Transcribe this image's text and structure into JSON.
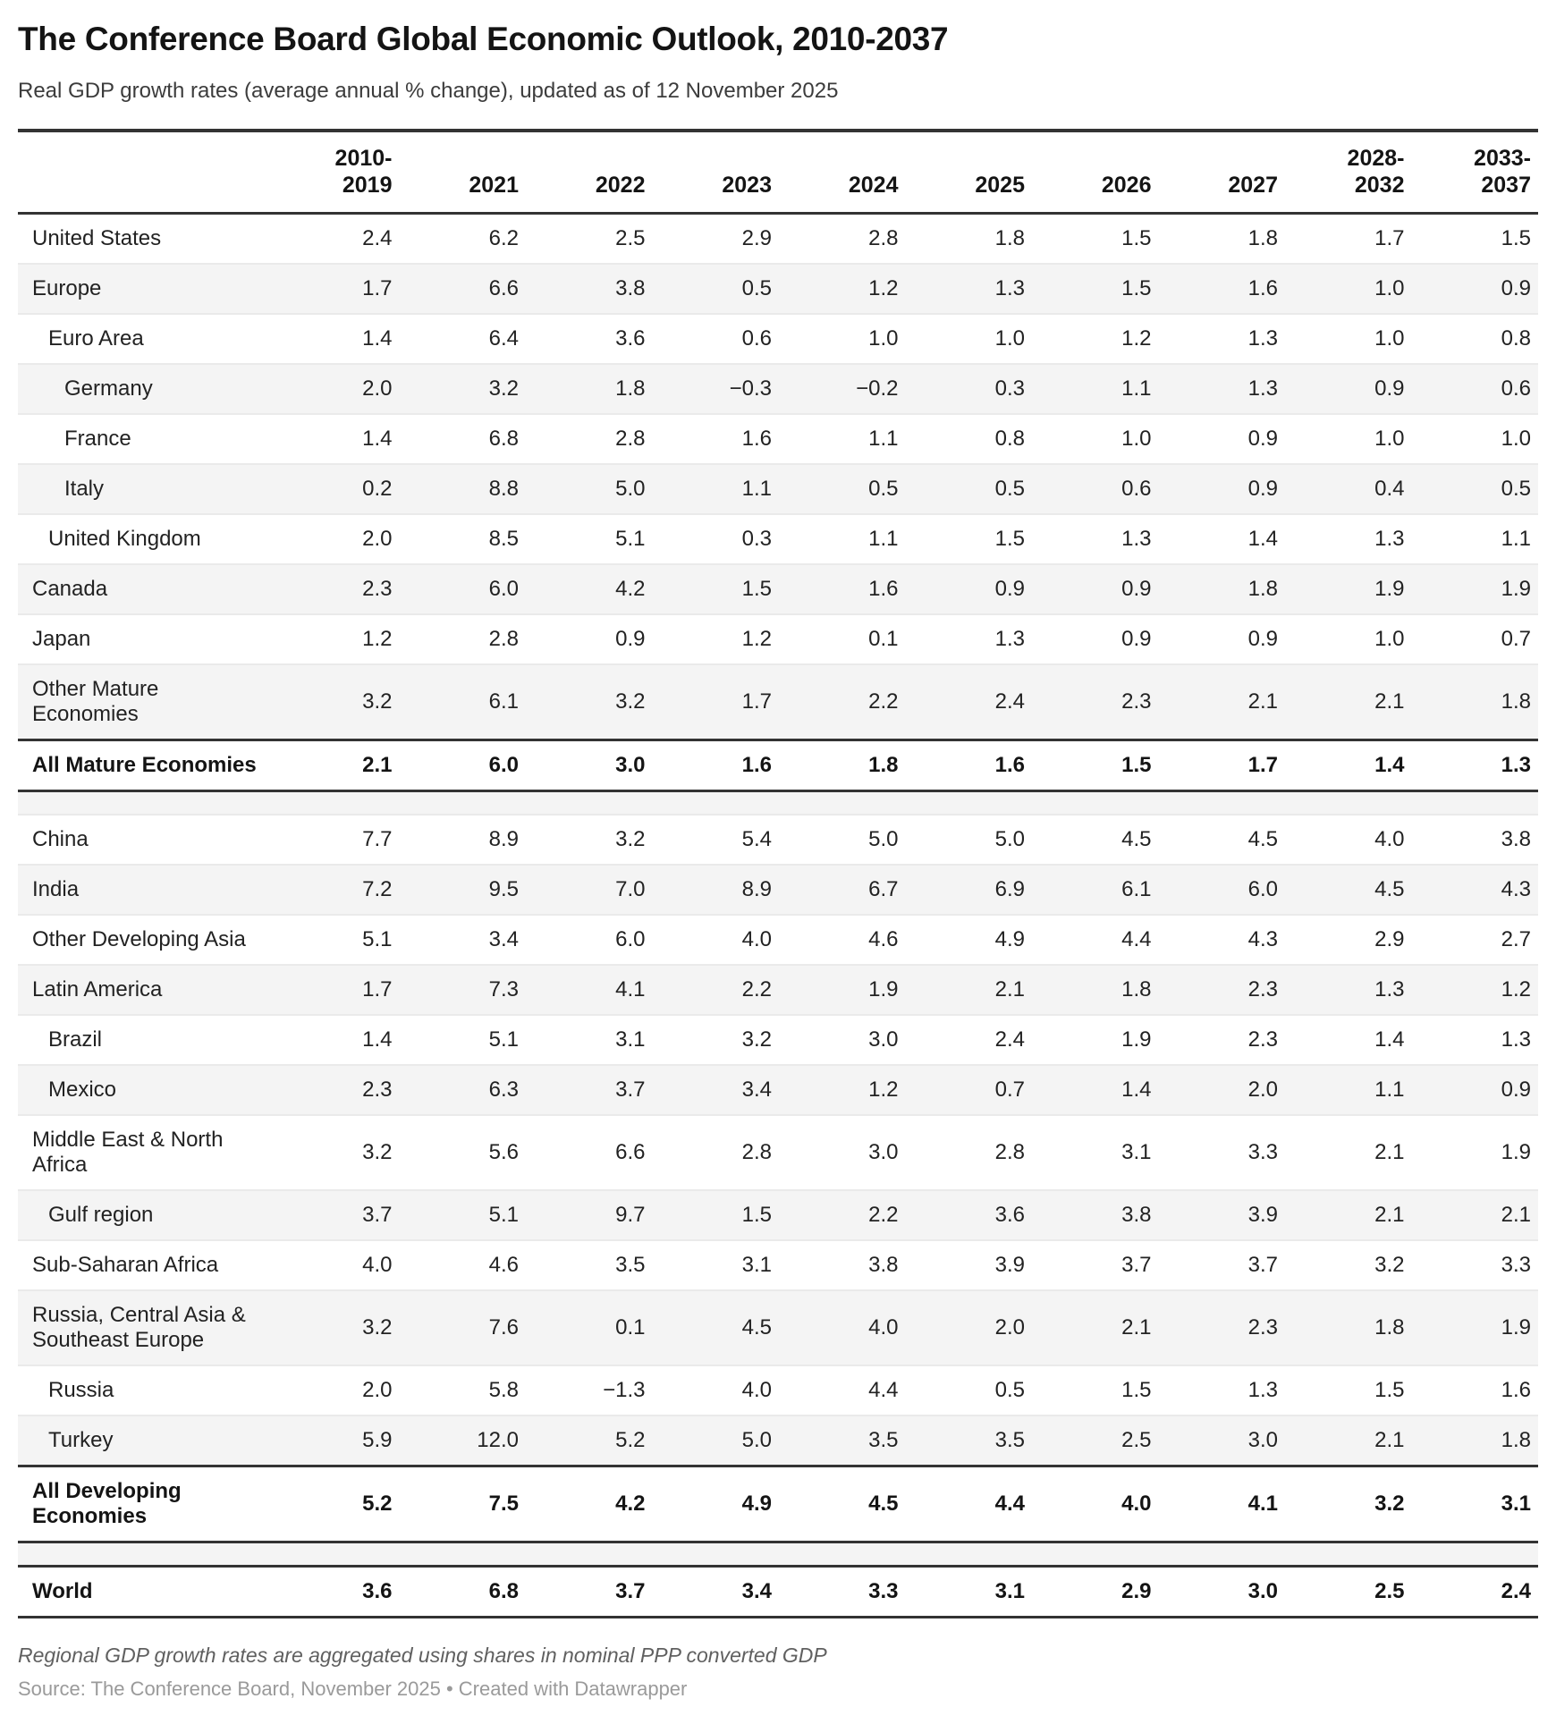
{
  "chart_data": {
    "type": "table",
    "title": "The Conference Board Global Economic Outlook, 2010-2037",
    "subtitle": "Real GDP growth rates (average annual % change), updated as of 12 November 2025",
    "columns": [
      "2010-\n2019",
      "2021",
      "2022",
      "2023",
      "2024",
      "2025",
      "2026",
      "2027",
      "2028-\n2032",
      "2033-\n2037"
    ],
    "rows": [
      {
        "label": "United States",
        "indent": 0,
        "type": "data",
        "values": [
          "2.4",
          "6.2",
          "2.5",
          "2.9",
          "2.8",
          "1.8",
          "1.5",
          "1.8",
          "1.7",
          "1.5"
        ]
      },
      {
        "label": "Europe",
        "indent": 0,
        "type": "data",
        "values": [
          "1.7",
          "6.6",
          "3.8",
          "0.5",
          "1.2",
          "1.3",
          "1.5",
          "1.6",
          "1.0",
          "0.9"
        ]
      },
      {
        "label": "Euro Area",
        "indent": 1,
        "type": "data",
        "values": [
          "1.4",
          "6.4",
          "3.6",
          "0.6",
          "1.0",
          "1.0",
          "1.2",
          "1.3",
          "1.0",
          "0.8"
        ]
      },
      {
        "label": "Germany",
        "indent": 2,
        "type": "data",
        "values": [
          "2.0",
          "3.2",
          "1.8",
          "−0.3",
          "−0.2",
          "0.3",
          "1.1",
          "1.3",
          "0.9",
          "0.6"
        ]
      },
      {
        "label": "France",
        "indent": 2,
        "type": "data",
        "values": [
          "1.4",
          "6.8",
          "2.8",
          "1.6",
          "1.1",
          "0.8",
          "1.0",
          "0.9",
          "1.0",
          "1.0"
        ]
      },
      {
        "label": "Italy",
        "indent": 2,
        "type": "data",
        "values": [
          "0.2",
          "8.8",
          "5.0",
          "1.1",
          "0.5",
          "0.5",
          "0.6",
          "0.9",
          "0.4",
          "0.5"
        ]
      },
      {
        "label": "United Kingdom",
        "indent": 1,
        "type": "data",
        "values": [
          "2.0",
          "8.5",
          "5.1",
          "0.3",
          "1.1",
          "1.5",
          "1.3",
          "1.4",
          "1.3",
          "1.1"
        ]
      },
      {
        "label": "Canada",
        "indent": 0,
        "type": "data",
        "values": [
          "2.3",
          "6.0",
          "4.2",
          "1.5",
          "1.6",
          "0.9",
          "0.9",
          "1.8",
          "1.9",
          "1.9"
        ]
      },
      {
        "label": "Japan",
        "indent": 0,
        "type": "data",
        "values": [
          "1.2",
          "2.8",
          "0.9",
          "1.2",
          "0.1",
          "1.3",
          "0.9",
          "0.9",
          "1.0",
          "0.7"
        ]
      },
      {
        "label": "Other Mature\nEconomies",
        "indent": 0,
        "type": "data",
        "values": [
          "3.2",
          "6.1",
          "3.2",
          "1.7",
          "2.2",
          "2.4",
          "2.3",
          "2.1",
          "2.1",
          "1.8"
        ]
      },
      {
        "label": "All Mature Economies",
        "indent": 0,
        "type": "total",
        "values": [
          "2.1",
          "6.0",
          "3.0",
          "1.6",
          "1.8",
          "1.6",
          "1.5",
          "1.7",
          "1.4",
          "1.3"
        ]
      },
      {
        "label": "",
        "indent": 0,
        "type": "spacer",
        "values": []
      },
      {
        "label": "China",
        "indent": 0,
        "type": "data",
        "values": [
          "7.7",
          "8.9",
          "3.2",
          "5.4",
          "5.0",
          "5.0",
          "4.5",
          "4.5",
          "4.0",
          "3.8"
        ]
      },
      {
        "label": "India",
        "indent": 0,
        "type": "data",
        "values": [
          "7.2",
          "9.5",
          "7.0",
          "8.9",
          "6.7",
          "6.9",
          "6.1",
          "6.0",
          "4.5",
          "4.3"
        ]
      },
      {
        "label": "Other Developing Asia",
        "indent": 0,
        "type": "data",
        "values": [
          "5.1",
          "3.4",
          "6.0",
          "4.0",
          "4.6",
          "4.9",
          "4.4",
          "4.3",
          "2.9",
          "2.7"
        ]
      },
      {
        "label": "Latin America",
        "indent": 0,
        "type": "data",
        "values": [
          "1.7",
          "7.3",
          "4.1",
          "2.2",
          "1.9",
          "2.1",
          "1.8",
          "2.3",
          "1.3",
          "1.2"
        ]
      },
      {
        "label": "Brazil",
        "indent": 1,
        "type": "data",
        "values": [
          "1.4",
          "5.1",
          "3.1",
          "3.2",
          "3.0",
          "2.4",
          "1.9",
          "2.3",
          "1.4",
          "1.3"
        ]
      },
      {
        "label": "Mexico",
        "indent": 1,
        "type": "data",
        "values": [
          "2.3",
          "6.3",
          "3.7",
          "3.4",
          "1.2",
          "0.7",
          "1.4",
          "2.0",
          "1.1",
          "0.9"
        ]
      },
      {
        "label": "Middle East & North\nAfrica",
        "indent": 0,
        "type": "data",
        "values": [
          "3.2",
          "5.6",
          "6.6",
          "2.8",
          "3.0",
          "2.8",
          "3.1",
          "3.3",
          "2.1",
          "1.9"
        ]
      },
      {
        "label": "Gulf region",
        "indent": 1,
        "type": "data",
        "values": [
          "3.7",
          "5.1",
          "9.7",
          "1.5",
          "2.2",
          "3.6",
          "3.8",
          "3.9",
          "2.1",
          "2.1"
        ]
      },
      {
        "label": "Sub-Saharan Africa",
        "indent": 0,
        "type": "data",
        "values": [
          "4.0",
          "4.6",
          "3.5",
          "3.1",
          "3.8",
          "3.9",
          "3.7",
          "3.7",
          "3.2",
          "3.3"
        ]
      },
      {
        "label": "Russia, Central Asia &\nSoutheast Europe",
        "indent": 0,
        "type": "data",
        "values": [
          "3.2",
          "7.6",
          "0.1",
          "4.5",
          "4.0",
          "2.0",
          "2.1",
          "2.3",
          "1.8",
          "1.9"
        ]
      },
      {
        "label": "Russia",
        "indent": 1,
        "type": "data",
        "values": [
          "2.0",
          "5.8",
          "−1.3",
          "4.0",
          "4.4",
          "0.5",
          "1.5",
          "1.3",
          "1.5",
          "1.6"
        ]
      },
      {
        "label": "Turkey",
        "indent": 1,
        "type": "data",
        "values": [
          "5.9",
          "12.0",
          "5.2",
          "5.0",
          "3.5",
          "3.5",
          "2.5",
          "3.0",
          "2.1",
          "1.8"
        ]
      },
      {
        "label": "All Developing\nEconomies",
        "indent": 0,
        "type": "total",
        "values": [
          "5.2",
          "7.5",
          "4.2",
          "4.9",
          "4.5",
          "4.4",
          "4.0",
          "4.1",
          "3.2",
          "3.1"
        ]
      },
      {
        "label": "",
        "indent": 0,
        "type": "spacer",
        "values": []
      },
      {
        "label": "World",
        "indent": 0,
        "type": "total",
        "values": [
          "3.6",
          "6.8",
          "3.7",
          "3.4",
          "3.3",
          "3.1",
          "2.9",
          "3.0",
          "2.5",
          "2.4"
        ]
      }
    ],
    "footnote": "Regional GDP growth rates are aggregated using shares in nominal PPP converted GDP",
    "source": "Source: The Conference Board, November 2025 • Created with Datawrapper",
    "layout_hints": {
      "stripe_color": "#f4f4f4",
      "rule_color": "#333333",
      "thin_rule_color": "#eaeaea"
    }
  }
}
